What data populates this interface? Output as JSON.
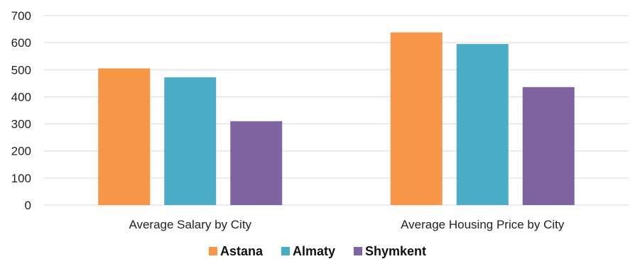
{
  "chart_data": {
    "type": "bar",
    "categories": [
      "Average Salary by City",
      "Average Housing Price by City"
    ],
    "series": [
      {
        "name": "Astana",
        "color": "#F79646",
        "values": [
          505,
          638
        ]
      },
      {
        "name": "Almaty",
        "color": "#4BACC6",
        "values": [
          472,
          595
        ]
      },
      {
        "name": "Shymkent",
        "color": "#8064A2",
        "values": [
          310,
          436
        ]
      }
    ],
    "ylim": [
      0,
      700
    ],
    "yticks": [
      0,
      100,
      200,
      300,
      400,
      500,
      600,
      700
    ],
    "grid": true,
    "legend_position": "bottom"
  }
}
